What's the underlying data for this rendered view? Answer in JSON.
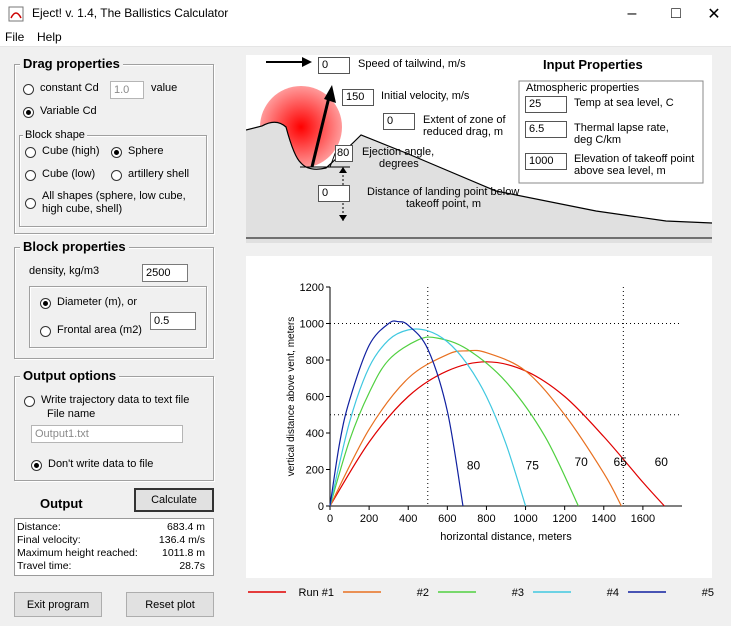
{
  "window": {
    "title": "Eject! v. 1.4, The Ballistics Calculator"
  },
  "menu": [
    "File",
    "Help"
  ],
  "drag": {
    "title": "Drag properties",
    "constant_cd_label": "constant Cd",
    "constant_cd_value": "1.0",
    "value_label": "value",
    "variable_cd_label": "Variable Cd",
    "block_shape_title": "Block shape",
    "shape_cube_high": "Cube (high)",
    "shape_sphere": "Sphere",
    "shape_cube_low": "Cube (low)",
    "shape_artillery": "artillery shell",
    "shape_all": "All shapes (sphere, low cube,",
    "shape_all_2": "high  cube, shell)"
  },
  "block": {
    "title": "Block properties",
    "density_label": "density, kg/m3",
    "density_value": "2500",
    "diameter_label": "Diameter (m), or",
    "frontal_label": "Frontal area (m2)",
    "size_value": "0.5"
  },
  "output_options": {
    "title": "Output options",
    "write_label": "Write trajectory data to text file",
    "file_name_label": "File name",
    "file_name_value": "Output1.txt",
    "dont_write_label": "Don't write data to file"
  },
  "output": {
    "title": "Output",
    "calculate_label": "Calculate",
    "rows": [
      {
        "label": "Distance:",
        "value": "683.4 m"
      },
      {
        "label": "Final velocity:",
        "value": "136.4 m/s"
      },
      {
        "label": "Maximum height reached:",
        "value": "1011.8 m"
      },
      {
        "label": "Travel time:",
        "value": "28.7s"
      }
    ]
  },
  "buttons": {
    "exit": "Exit program",
    "reset": "Reset plot"
  },
  "inputs": {
    "title": "Input Properties",
    "tailwind_value": "0",
    "tailwind_label": "Speed of tailwind, m/s",
    "velocity_value": "150",
    "velocity_label": "Initial velocity, m/s",
    "zone_value": "0",
    "zone_label_1": "Extent of zone of",
    "zone_label_2": "reduced drag, m",
    "angle_value": "80",
    "angle_label_1": "Ejection angle,",
    "angle_label_2": "degrees",
    "landing_value": "0",
    "landing_label_1": "Distance of landing point below",
    "landing_label_2": "takeoff point, m",
    "atmos_title": "Atmospheric properties",
    "temp_value": "25",
    "temp_label": "Temp at sea level, C",
    "lapse_value": "6.5",
    "lapse_label_1": "Thermal lapse rate,",
    "lapse_label_2": "deg C/km",
    "elev_value": "1000",
    "elev_label_1": "Elevation of takeoff point",
    "elev_label_2": "above sea level, m"
  },
  "chart_data": {
    "type": "line",
    "xlabel": "horizontal distance, meters",
    "ylabel": "vertical distance above vent, meters",
    "xlim": [
      0,
      1800
    ],
    "ylim": [
      0,
      1200
    ],
    "xticks": [
      0,
      200,
      400,
      600,
      800,
      1000,
      1200,
      1400,
      1600
    ],
    "yticks": [
      0,
      200,
      400,
      600,
      800,
      1000,
      1200
    ],
    "series": [
      {
        "name": "Run #1",
        "color": "#e00000",
        "angle_label": "60",
        "points": [
          [
            0,
            0
          ],
          [
            200,
            350
          ],
          [
            400,
            600
          ],
          [
            600,
            740
          ],
          [
            800,
            790
          ],
          [
            1000,
            740
          ],
          [
            1200,
            600
          ],
          [
            1400,
            380
          ],
          [
            1600,
            130
          ],
          [
            1710,
            0
          ]
        ]
      },
      {
        "name": "#2",
        "color": "#e87020",
        "angle_label": "65",
        "points": [
          [
            0,
            0
          ],
          [
            200,
            420
          ],
          [
            400,
            700
          ],
          [
            600,
            830
          ],
          [
            700,
            850
          ],
          [
            800,
            840
          ],
          [
            1000,
            740
          ],
          [
            1200,
            500
          ],
          [
            1400,
            180
          ],
          [
            1490,
            0
          ]
        ]
      },
      {
        "name": "#3",
        "color": "#50d040",
        "angle_label": "70",
        "points": [
          [
            0,
            0
          ],
          [
            100,
            360
          ],
          [
            200,
            620
          ],
          [
            300,
            800
          ],
          [
            450,
            910
          ],
          [
            550,
            920
          ],
          [
            700,
            860
          ],
          [
            900,
            680
          ],
          [
            1100,
            380
          ],
          [
            1270,
            0
          ]
        ]
      },
      {
        "name": "#4",
        "color": "#40c8e0",
        "angle_label": "75",
        "points": [
          [
            0,
            0
          ],
          [
            100,
            460
          ],
          [
            200,
            760
          ],
          [
            300,
            910
          ],
          [
            400,
            965
          ],
          [
            500,
            960
          ],
          [
            600,
            900
          ],
          [
            700,
            780
          ],
          [
            800,
            600
          ],
          [
            900,
            340
          ],
          [
            1000,
            0
          ]
        ]
      },
      {
        "name": "#5",
        "color": "#1020a0",
        "angle_label": "80",
        "points": [
          [
            0,
            0
          ],
          [
            50,
            350
          ],
          [
            100,
            580
          ],
          [
            200,
            880
          ],
          [
            300,
            1000
          ],
          [
            350,
            1010
          ],
          [
            400,
            990
          ],
          [
            500,
            860
          ],
          [
            600,
            520
          ],
          [
            680,
            0
          ]
        ]
      }
    ],
    "angle_label_positions": [
      {
        "text": "80",
        "x": 700,
        "y": 200
      },
      {
        "text": "75",
        "x": 1000,
        "y": 200
      },
      {
        "text": "70",
        "x": 1250,
        "y": 220
      },
      {
        "text": "65",
        "x": 1450,
        "y": 220
      },
      {
        "text": "60",
        "x": 1660,
        "y": 220
      }
    ],
    "dotted_gridlines": {
      "x": [
        500,
        1500
      ],
      "y": [
        1000,
        500
      ]
    }
  }
}
